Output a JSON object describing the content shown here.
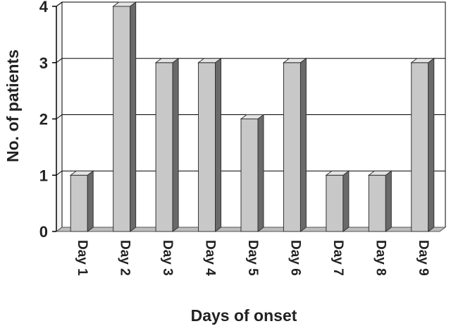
{
  "chart_data": {
    "type": "bar",
    "style": "3d",
    "categories": [
      "Day 1",
      "Day 2",
      "Day 3",
      "Day 4",
      "Day 5",
      "Day 6",
      "Day 7",
      "Day 8",
      "Day 9"
    ],
    "values": [
      1,
      4,
      3,
      3,
      2,
      3,
      1,
      1,
      3
    ],
    "xlabel": "Days of onset",
    "ylabel": "No. of patients",
    "ylim": [
      0,
      4
    ],
    "yticks": [
      0,
      1,
      2,
      3,
      4
    ],
    "grid": true,
    "legend": null,
    "colors": {
      "bar_front": "#c8c8c8",
      "bar_top": "#e4e4e4",
      "bar_side": "#6a6a6a",
      "floor": "#bdbdbd",
      "gridline": "#000000",
      "wall": "#ffffff"
    }
  }
}
